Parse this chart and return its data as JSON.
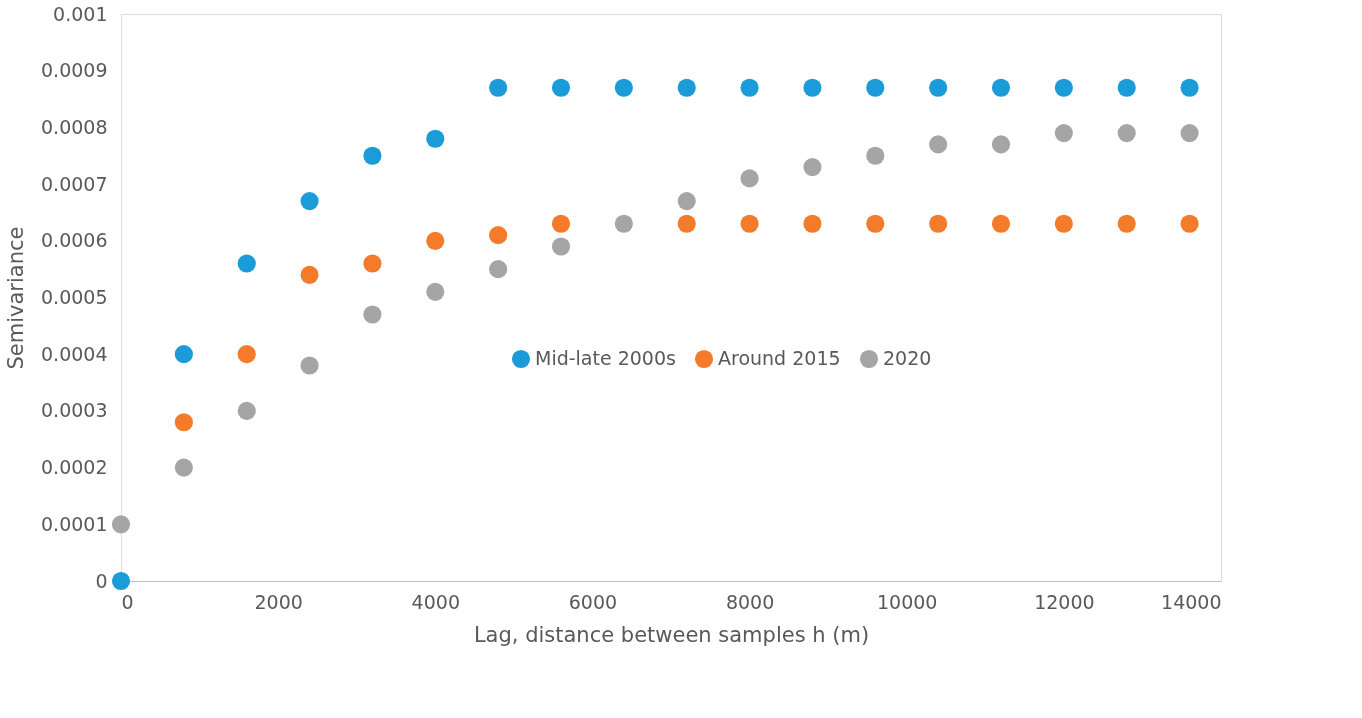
{
  "chart_data": {
    "type": "scatter",
    "xlabel": "Lag, distance between samples h (m)",
    "ylabel": "Semivariance",
    "series": [
      {
        "name": "Mid-late 2000s",
        "color": "#1b9bd7",
        "x": [
          0,
          800,
          1600,
          2400,
          3200,
          4000,
          4800,
          5600,
          6400,
          7200,
          8000,
          8800,
          9600,
          10400,
          11200,
          12000,
          12800,
          13600
        ],
        "values": [
          0,
          0.0004,
          0.00056,
          0.00067,
          0.00075,
          0.00078,
          0.00087,
          0.00087,
          0.00087,
          0.00087,
          0.00087,
          0.00087,
          0.00087,
          0.00087,
          0.00087,
          0.00087,
          0.00087,
          0.00087
        ]
      },
      {
        "name": "Around 2015",
        "color": "#f47b2a",
        "x": [
          800,
          1600,
          2400,
          3200,
          4000,
          4800,
          5600,
          7200,
          8000,
          8800,
          9600,
          10400,
          11200,
          12000,
          12800,
          13600
        ],
        "values": [
          0.00028,
          0.0004,
          0.00054,
          0.00056,
          0.0006,
          0.00061,
          0.00063,
          0.00063,
          0.00063,
          0.00063,
          0.00063,
          0.00063,
          0.00063,
          0.00063,
          0.00063,
          0.00063
        ]
      },
      {
        "name": "2020",
        "color": "#a5a5a5",
        "x": [
          0,
          800,
          1600,
          2400,
          3200,
          4000,
          4800,
          5600,
          6400,
          7200,
          8000,
          8800,
          9600,
          10400,
          11200,
          12000,
          12800,
          13600
        ],
        "values": [
          0.0001,
          0.0002,
          0.0003,
          0.00038,
          0.00047,
          0.00051,
          0.00055,
          0.00059,
          0.00063,
          0.00067,
          0.00071,
          0.00073,
          0.00075,
          0.00077,
          0.00077,
          0.00079,
          0.00079,
          0.00079
        ]
      }
    ],
    "xlim": [
      0,
      14000
    ],
    "xticks": [
      0,
      2000,
      4000,
      6000,
      8000,
      10000,
      12000,
      14000
    ],
    "ylim": [
      0,
      0.001
    ],
    "yticks": [
      0,
      0.0001,
      0.0002,
      0.0003,
      0.0004,
      0.0005,
      0.0006,
      0.0007,
      0.0008,
      0.0009,
      0.001
    ],
    "grid": false,
    "legend": "right",
    "marker": "circle"
  }
}
